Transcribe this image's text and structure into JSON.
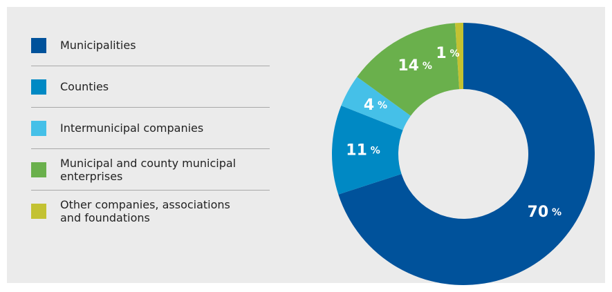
{
  "chart_data": {
    "type": "donut",
    "categories": [
      "Municipalities",
      "Counties",
      "Intermunicipal companies",
      "Municipal and county municipal enterprises",
      "Other companies, associations and foundations"
    ],
    "values": [
      70,
      11,
      4,
      14,
      1
    ],
    "value_labels": [
      "70 %",
      "11 %",
      "4 %",
      "14 %",
      "1 %"
    ],
    "colors": [
      "#00529b",
      "#0089c4",
      "#45c0e8",
      "#6ab04c",
      "#c3c232"
    ],
    "legend": "left"
  }
}
